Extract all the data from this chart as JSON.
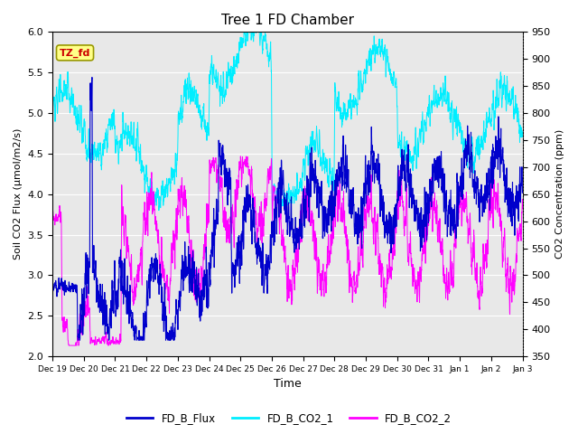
{
  "title": "Tree 1 FD Chamber",
  "xlabel": "Time",
  "ylabel_left": "Soil CO2 Flux (μmol/m2/s)",
  "ylabel_right": "CO2 Concentration (ppm)",
  "ylim_left": [
    2.0,
    6.0
  ],
  "ylim_right": [
    350,
    950
  ],
  "flux_color": "#0000CC",
  "co2_1_color": "#00EEFF",
  "co2_2_color": "#FF00FF",
  "fig_bg": "#FFFFFF",
  "plot_bg": "#E8E8E8",
  "annotation_text": "TZ_fd",
  "annotation_color": "#CC0000",
  "annotation_bg": "#FFFF88",
  "annotation_border": "#999900",
  "legend_labels": [
    "FD_B_Flux",
    "FD_B_CO2_1",
    "FD_B_CO2_2"
  ],
  "x_tick_labels": [
    "Dec 19",
    "Dec 20",
    "Dec 21",
    "Dec 22",
    "Dec 23",
    "Dec 24",
    "Dec 25",
    "Dec 26",
    "Dec 27",
    "Dec 28",
    "Dec 29",
    "Dec 30",
    "Dec 31",
    "Jan 1",
    "Jan 2",
    "Jan 3"
  ],
  "n_points": 3000,
  "seed": 42
}
